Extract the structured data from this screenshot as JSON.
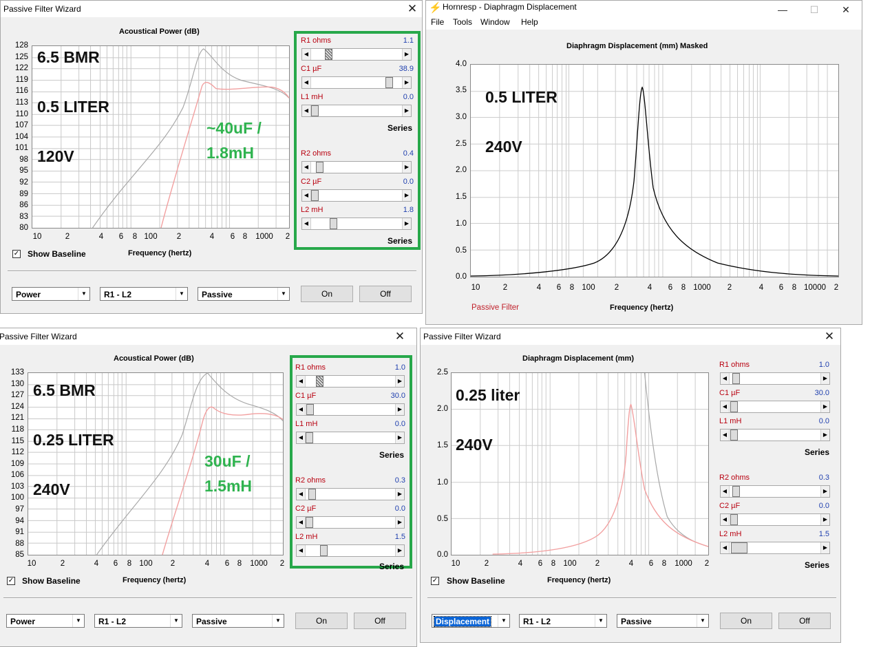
{
  "windows": {
    "w1": {
      "title": "Passive Filter Wizard",
      "plot_title": "Acoustical Power (dB)",
      "x_label": "Frequency (hertz)",
      "yticks": [
        "128",
        "125",
        "122",
        "119",
        "116",
        "113",
        "110",
        "107",
        "104",
        "101",
        "98",
        "95",
        "92",
        "89",
        "86",
        "83",
        "80"
      ],
      "xticks": [
        "10",
        "2",
        "4",
        "6",
        "8",
        "100",
        "2",
        "4",
        "6",
        "8",
        "1000",
        "2"
      ],
      "notes": [
        "6.5 BMR",
        "0.5 LITER",
        "120V"
      ],
      "green_note": [
        "~40uF /",
        "1.8mH"
      ],
      "show_baseline": "Show Baseline",
      "combos": [
        "Power",
        "R1 - L2",
        "Passive"
      ],
      "buttons": [
        "On",
        "Off"
      ],
      "sliders": [
        {
          "label": "R1  ohms",
          "value": "1.1"
        },
        {
          "label": "C1  µF",
          "value": "38.9"
        },
        {
          "label": "L1  mH",
          "value": "0.0"
        },
        {
          "label": "R2  ohms",
          "value": "0.4"
        },
        {
          "label": "C2  µF",
          "value": "0.0"
        },
        {
          "label": "L2  mH",
          "value": "1.8"
        }
      ],
      "series_label": "Series",
      "colors": {
        "baseline": "#a8a8a8",
        "filtered": "#f2a0a0"
      }
    },
    "w2": {
      "title": "Hornresp - Diaphragm Displacement",
      "menu": [
        "File",
        "Tools",
        "Window",
        "Help"
      ],
      "plot_title": "Diaphragm Displacement (mm)   Masked",
      "x_label": "Frequency (hertz)",
      "legend": "Passive Filter",
      "yticks": [
        "4.0",
        "3.5",
        "3.0",
        "2.5",
        "2.0",
        "1.5",
        "1.0",
        "0.5",
        "0.0"
      ],
      "xticks": [
        "10",
        "2",
        "4",
        "6",
        "8",
        "100",
        "2",
        "4",
        "6",
        "8",
        "1000",
        "2",
        "4",
        "6",
        "8",
        "10000",
        "2"
      ],
      "notes": [
        "0.5 LITER",
        "240V"
      ],
      "window_controls": [
        "minimize-icon",
        "maximize-icon",
        "close-icon"
      ]
    },
    "w3": {
      "title": "Passive Filter Wizard",
      "plot_title": "Acoustical Power (dB)",
      "x_label": "Frequency (hertz)",
      "yticks": [
        "133",
        "130",
        "127",
        "124",
        "121",
        "118",
        "115",
        "112",
        "109",
        "106",
        "103",
        "100",
        "97",
        "94",
        "91",
        "88",
        "85"
      ],
      "xticks": [
        "10",
        "2",
        "4",
        "6",
        "8",
        "100",
        "2",
        "4",
        "6",
        "8",
        "1000",
        "2"
      ],
      "notes": [
        "6.5 BMR",
        "0.25 LITER",
        "240V"
      ],
      "green_note": [
        "30uF /",
        "1.5mH"
      ],
      "show_baseline": "Show Baseline",
      "combos": [
        "Power",
        "R1 - L2",
        "Passive"
      ],
      "buttons": [
        "On",
        "Off"
      ],
      "sliders": [
        {
          "label": "R1  ohms",
          "value": "1.0"
        },
        {
          "label": "C1  µF",
          "value": "30.0"
        },
        {
          "label": "L1  mH",
          "value": "0.0"
        },
        {
          "label": "R2  ohms",
          "value": "0.3"
        },
        {
          "label": "C2  µF",
          "value": "0.0"
        },
        {
          "label": "L2  mH",
          "value": "1.5"
        }
      ],
      "series_label": "Series"
    },
    "w4": {
      "title": "Passive Filter Wizard",
      "plot_title": "Diaphragm Displacement (mm)",
      "x_label": "Frequency (hertz)",
      "yticks": [
        "2.5",
        "2.0",
        "1.5",
        "1.0",
        "0.5",
        "0.0"
      ],
      "xticks": [
        "10",
        "2",
        "4",
        "6",
        "8",
        "100",
        "2",
        "4",
        "6",
        "8",
        "1000",
        "2"
      ],
      "notes": [
        "0.25  liter",
        "240V"
      ],
      "show_baseline": "Show Baseline",
      "combos": [
        "Displacement",
        "R1 - L2",
        "Passive"
      ],
      "buttons": [
        "On",
        "Off"
      ],
      "sliders": [
        {
          "label": "R1  ohms",
          "value": "1.0"
        },
        {
          "label": "C1  µF",
          "value": "30.0"
        },
        {
          "label": "L1  mH",
          "value": "0.0"
        },
        {
          "label": "R2  ohms",
          "value": "0.3"
        },
        {
          "label": "C2  µF",
          "value": "0.0"
        },
        {
          "label": "L2  mH",
          "value": "1.5"
        }
      ],
      "series_label": "Series"
    }
  }
}
